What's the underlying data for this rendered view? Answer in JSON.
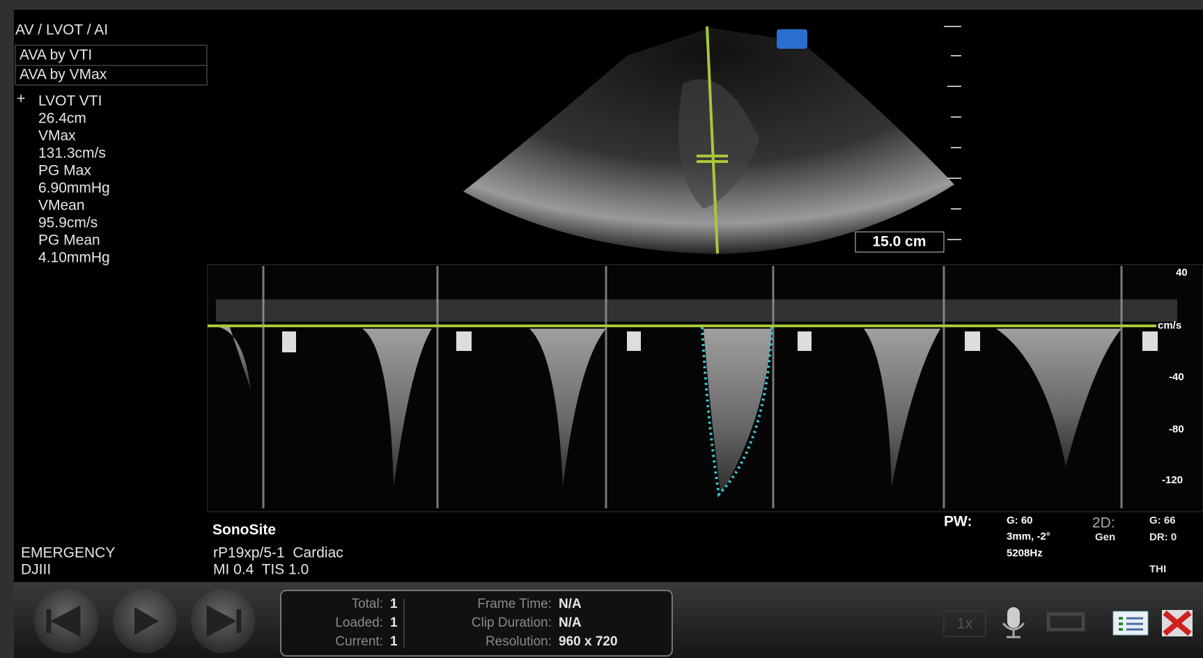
{
  "protocol": "AV / LVOT / AI",
  "menu": [
    "AVA by VTI",
    "AVA by VMax"
  ],
  "measurements": [
    {
      "label": "LVOT VTI",
      "value": "26.4cm"
    },
    {
      "label": "VMax",
      "value": "131.3cm/s"
    },
    {
      "label": "PG Max",
      "value": "6.90mmHg"
    },
    {
      "label": "VMean",
      "value": "95.9cm/s"
    },
    {
      "label": "PG Mean",
      "value": "4.10mmHg"
    }
  ],
  "depth": "15.0 cm",
  "doppler_scale": {
    "ticks": [
      "40",
      "-40",
      "-80",
      "-120"
    ],
    "unit": "cm/s"
  },
  "footer": {
    "brand": "SonoSite",
    "transducer": "rP19xp/5-1  Cardiac",
    "indices": "MI 0.4  TIS 1.0",
    "department": "EMERGENCY",
    "operator": "DJIII"
  },
  "pw": {
    "label": "PW:",
    "gain": "G: 60",
    "gate": "3mm, -2°",
    "prf": "5208Hz"
  },
  "two_d": {
    "label": "2D:",
    "gain": "G: 66",
    "mode": "Gen",
    "dr": "DR: 0",
    "thi": "THI"
  },
  "clip_info": {
    "left": [
      {
        "label": "Total:",
        "value": "1"
      },
      {
        "label": "Loaded:",
        "value": "1"
      },
      {
        "label": "Current:",
        "value": "1"
      }
    ],
    "right": [
      {
        "label": "Frame Time:",
        "value": "N/A"
      },
      {
        "label": "Clip Duration:",
        "value": "N/A"
      },
      {
        "label": "Resolution:",
        "value": "960 x 720"
      }
    ]
  },
  "playback": {
    "speed": "1x"
  }
}
